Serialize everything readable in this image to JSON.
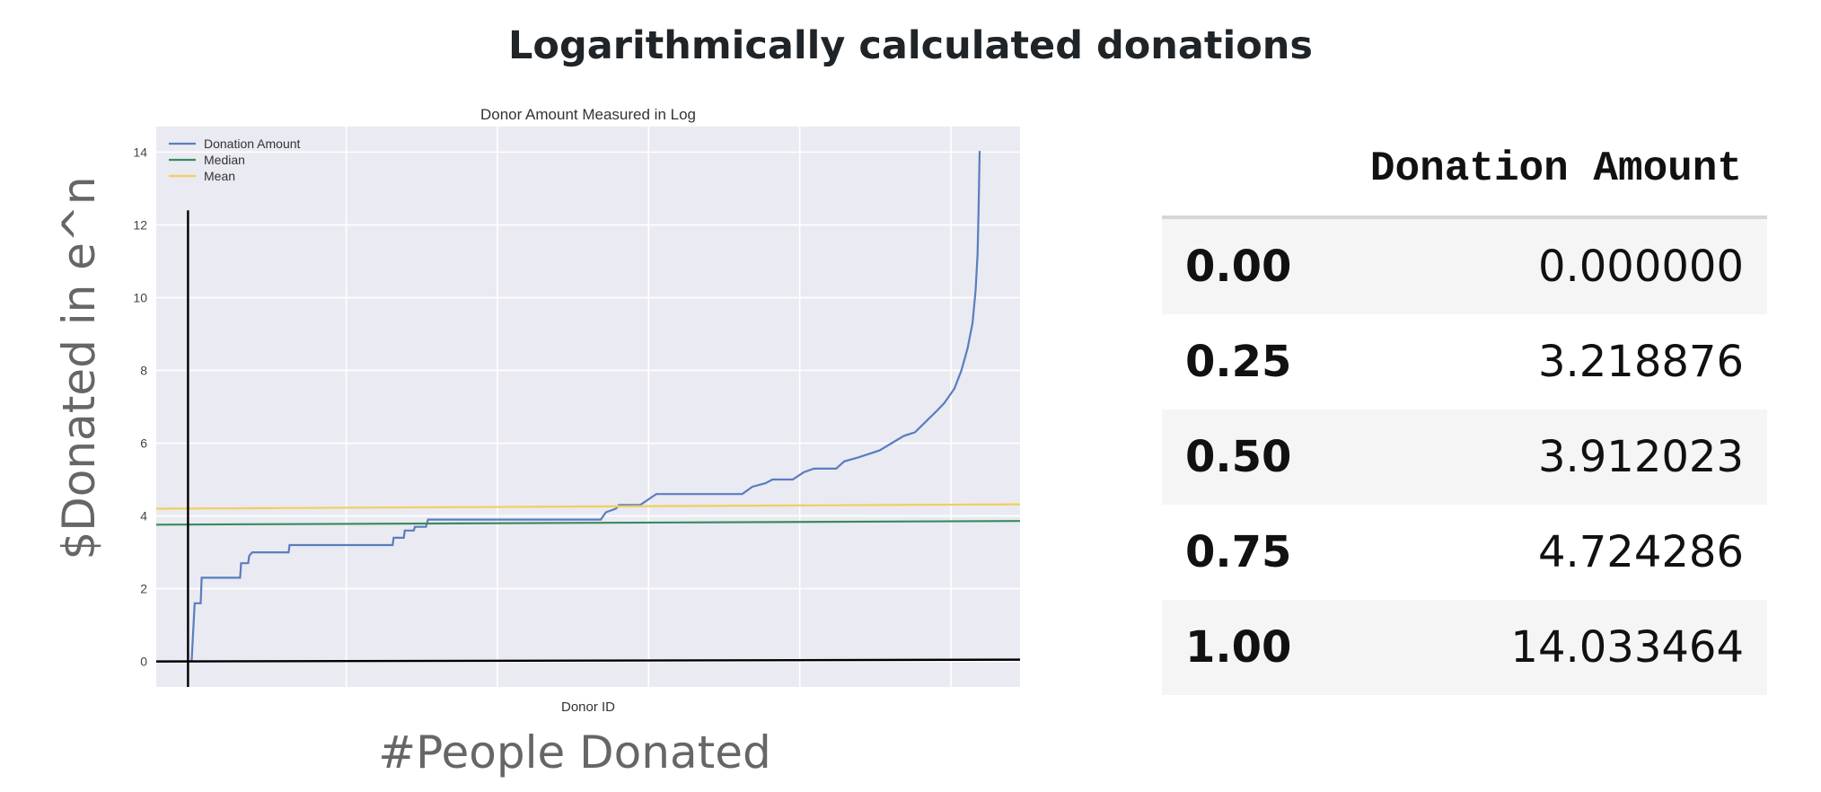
{
  "slide": {
    "title": "Logarithmically calculated donations",
    "outer_y_label": "$Donated in e^n",
    "outer_x_label": "#People Donated"
  },
  "chart_data": {
    "type": "line",
    "title": "Donor Amount Measured in Log",
    "xlabel": "Donor ID",
    "ylabel": "",
    "ylim": [
      -0.7,
      14.7
    ],
    "yticks": [
      0,
      2,
      4,
      6,
      8,
      10,
      12,
      14
    ],
    "grid": true,
    "legend_position": "top-left",
    "series": [
      {
        "name": "Donation Amount",
        "color": "#5a7dbf",
        "points": [
          [
            0.0,
            0.0
          ],
          [
            0.3,
            1.6
          ],
          [
            0.9,
            1.6
          ],
          [
            1.0,
            2.3
          ],
          [
            4.8,
            2.3
          ],
          [
            4.9,
            2.7
          ],
          [
            5.6,
            2.7
          ],
          [
            5.7,
            2.9
          ],
          [
            6.0,
            3.0
          ],
          [
            9.6,
            3.0
          ],
          [
            9.7,
            3.2
          ],
          [
            19.9,
            3.2
          ],
          [
            20.0,
            3.4
          ],
          [
            21.0,
            3.4
          ],
          [
            21.1,
            3.6
          ],
          [
            22.0,
            3.6
          ],
          [
            22.1,
            3.7
          ],
          [
            23.2,
            3.7
          ],
          [
            23.4,
            3.9
          ],
          [
            40.5,
            3.9
          ],
          [
            41.0,
            4.1
          ],
          [
            42.0,
            4.2
          ],
          [
            42.3,
            4.3
          ],
          [
            44.4,
            4.3
          ],
          [
            46.0,
            4.6
          ],
          [
            54.5,
            4.6
          ],
          [
            55.5,
            4.8
          ],
          [
            56.8,
            4.9
          ],
          [
            57.5,
            5.0
          ],
          [
            59.5,
            5.0
          ],
          [
            60.6,
            5.2
          ],
          [
            61.6,
            5.3
          ],
          [
            63.8,
            5.3
          ],
          [
            64.6,
            5.5
          ],
          [
            65.9,
            5.6
          ],
          [
            67.0,
            5.7
          ],
          [
            68.1,
            5.8
          ],
          [
            69.3,
            6.0
          ],
          [
            70.5,
            6.2
          ],
          [
            71.6,
            6.3
          ],
          [
            72.7,
            6.6
          ],
          [
            73.8,
            6.9
          ],
          [
            74.5,
            7.1
          ],
          [
            75.5,
            7.5
          ],
          [
            76.2,
            8.0
          ],
          [
            76.8,
            8.6
          ],
          [
            77.3,
            9.3
          ],
          [
            77.6,
            10.2
          ],
          [
            77.8,
            11.2
          ],
          [
            77.9,
            12.5
          ],
          [
            78.0,
            14.03
          ]
        ]
      },
      {
        "name": "Median",
        "color": "#3a8a5e",
        "points": [
          [
            -3.5,
            3.76
          ],
          [
            82.0,
            3.86
          ]
        ]
      },
      {
        "name": "Mean",
        "color": "#f2cf5b",
        "points": [
          [
            -3.5,
            4.2
          ],
          [
            82.0,
            4.32
          ]
        ]
      }
    ],
    "overlay_axes": {
      "x_axis_at_y": 0,
      "y_axis_at_x": 0,
      "y_axis_top": 12.4
    }
  },
  "table": {
    "header": "Donation Amount",
    "rows": [
      {
        "index": "0.00",
        "value": "0.000000"
      },
      {
        "index": "0.25",
        "value": "3.218876"
      },
      {
        "index": "0.50",
        "value": "3.912023"
      },
      {
        "index": "0.75",
        "value": "4.724286"
      },
      {
        "index": "1.00",
        "value": "14.033464"
      }
    ]
  }
}
